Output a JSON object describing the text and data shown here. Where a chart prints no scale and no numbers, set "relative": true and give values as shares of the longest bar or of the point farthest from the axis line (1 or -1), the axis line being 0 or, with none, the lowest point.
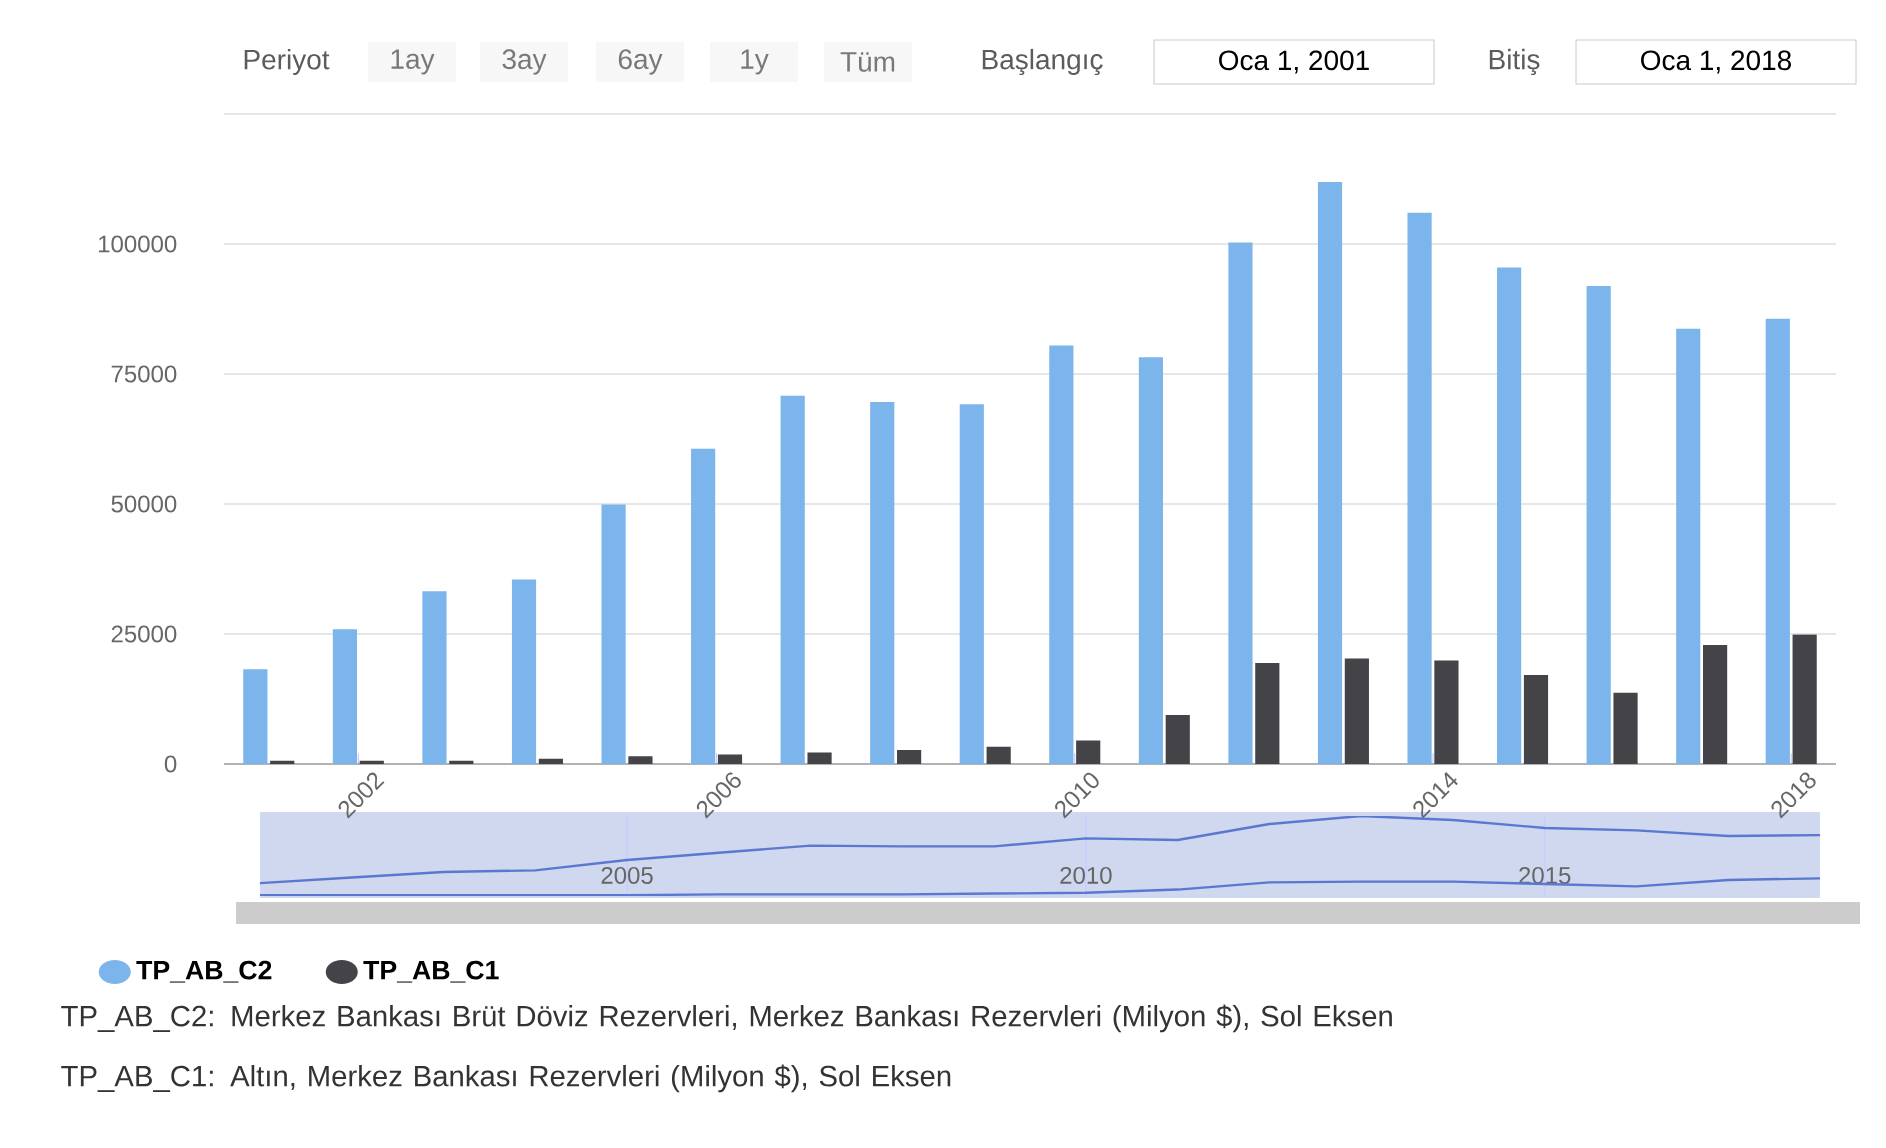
{
  "chart_data": [
    {
      "type": "bar",
      "x": [
        2001,
        2002,
        2003,
        2004,
        2005,
        2006,
        2007,
        2008,
        2009,
        2010,
        2011,
        2012,
        2013,
        2014,
        2015,
        2016,
        2017,
        2018
      ],
      "xlim": [
        2000.5,
        2018.5
      ],
      "xticks": [
        2002,
        2006,
        2010,
        2014,
        2018
      ],
      "ylim": [
        0,
        125000
      ],
      "yticks": [
        0,
        25000,
        50000,
        75000,
        100000,
        {
          "value": 125000,
          "label": null
        }
      ],
      "grid": "y",
      "legend": "bottom left",
      "series": [
        {
          "name": "TP_AB_C2",
          "color": "#7cb5ec",
          "values": [
            18200,
            25900,
            33200,
            35500,
            49900,
            60600,
            70800,
            69600,
            69200,
            80500,
            78200,
            100300,
            111900,
            106000,
            95500,
            91900,
            83700,
            85600
          ]
        },
        {
          "name": "TP_AB_C1",
          "color": "#434348",
          "values": [
            600,
            600,
            600,
            1000,
            1500,
            1800,
            2200,
            2700,
            3300,
            4500,
            9400,
            19400,
            20300,
            19900,
            17100,
            13700,
            22900,
            24900
          ]
        }
      ],
      "annotations": [
        "Periyot",
        "1ay",
        "3ay",
        "6ay",
        "1y",
        "Tüm",
        "Başlangıç",
        "Oca 1, 2001",
        "Bitiş",
        "Oca 1, 2018",
        "TP_AB_C2: Merkez Bankası Brüt Döviz Rezervleri, Merkez Bankası Rezervleri (Milyon $), Sol Eksen",
        "TP_AB_C1: Altın, Merkez Bankası Rezervleri (Milyon $), Sol Eksen"
      ]
    },
    {
      "type": "line",
      "x": [
        2001,
        2002,
        2003,
        2004,
        2005,
        2006,
        2007,
        2008,
        2009,
        2010,
        2011,
        2012,
        2013,
        2014,
        2015,
        2016,
        2017,
        2018
      ],
      "xlim": [
        2001,
        2018
      ],
      "xticks": [
        2005,
        2010,
        2015
      ],
      "relative": true,
      "grid": "x",
      "series": [
        {
          "color": "#5a78d0",
          "values": [
            0.16,
            0.23,
            0.3,
            0.32,
            0.45,
            0.54,
            0.63,
            0.62,
            0.62,
            0.72,
            0.7,
            0.9,
            1,
            0.95,
            0.85,
            0.82,
            0.75,
            0.76
          ]
        },
        {
          "color": "#5a78d0",
          "values": [
            0.01,
            0.01,
            0.01,
            0.01,
            0.01,
            0.02,
            0.02,
            0.02,
            0.03,
            0.04,
            0.08,
            0.17,
            0.18,
            0.18,
            0.15,
            0.12,
            0.2,
            0.22
          ]
        }
      ]
    }
  ]
}
